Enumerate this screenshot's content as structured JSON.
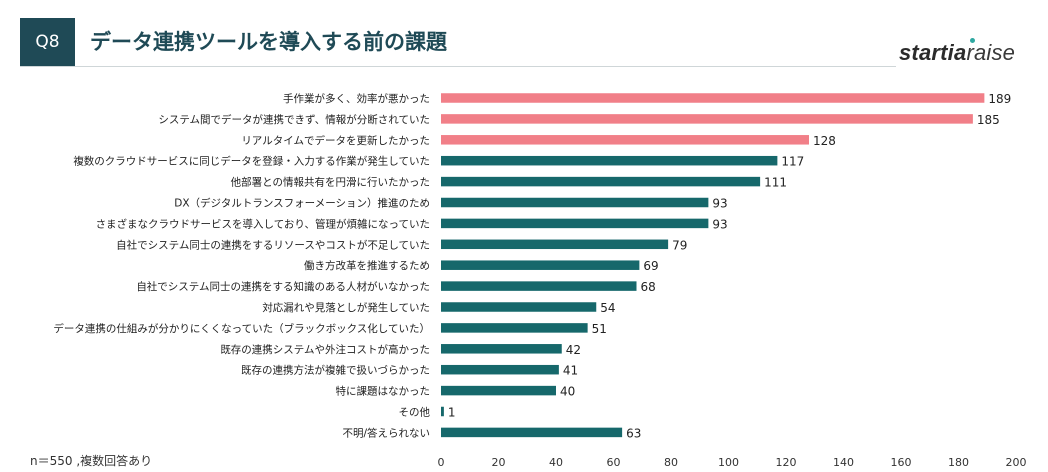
{
  "header": {
    "badge": "Q8",
    "title": "データ連携ツールを導入する前の課題"
  },
  "logo": {
    "part1": "startia",
    "part2": "raise"
  },
  "footnote": "n＝550 ,複数回答あり",
  "colors": {
    "highlight": "#f17f88",
    "normal": "#16686b",
    "header_bg": "#1f4a56",
    "logo_dot": "#2ea8a1"
  },
  "chart_data": {
    "type": "bar",
    "orientation": "horizontal",
    "categories": [
      "手作業が多く、効率が悪かった",
      "システム間でデータが連携できず、情報が分断されていた",
      "リアルタイムでデータを更新したかった",
      "複数のクラウドサービスに同じデータを登録・入力する作業が発生していた",
      "他部署との情報共有を円滑に行いたかった",
      "DX（デジタルトランスフォーメーション）推進のため",
      "さまざまなクラウドサービスを導入しており、管理が煩雑になっていた",
      "自社でシステム同士の連携をするリソースやコストが不足していた",
      "働き方改革を推進するため",
      "自社でシステム同士の連携をする知識のある人材がいなかった",
      "対応漏れや見落としが発生していた",
      "データ連携の仕組みが分かりにくくなっていた（ブラックボックス化していた）",
      "既存の連携システムや外注コストが高かった",
      "既存の連携方法が複雑で扱いづらかった",
      "特に課題はなかった",
      "その他",
      "不明/答えられない"
    ],
    "values": [
      189,
      185,
      128,
      117,
      111,
      93,
      93,
      79,
      69,
      68,
      54,
      51,
      42,
      41,
      40,
      1,
      63
    ],
    "highlighted": [
      true,
      true,
      true,
      false,
      false,
      false,
      false,
      false,
      false,
      false,
      false,
      false,
      false,
      false,
      false,
      false,
      false
    ],
    "xlim": [
      0,
      200
    ],
    "xticks": [
      0,
      20,
      40,
      60,
      80,
      100,
      120,
      140,
      160,
      180,
      200
    ],
    "grid": false,
    "legend": "none"
  }
}
